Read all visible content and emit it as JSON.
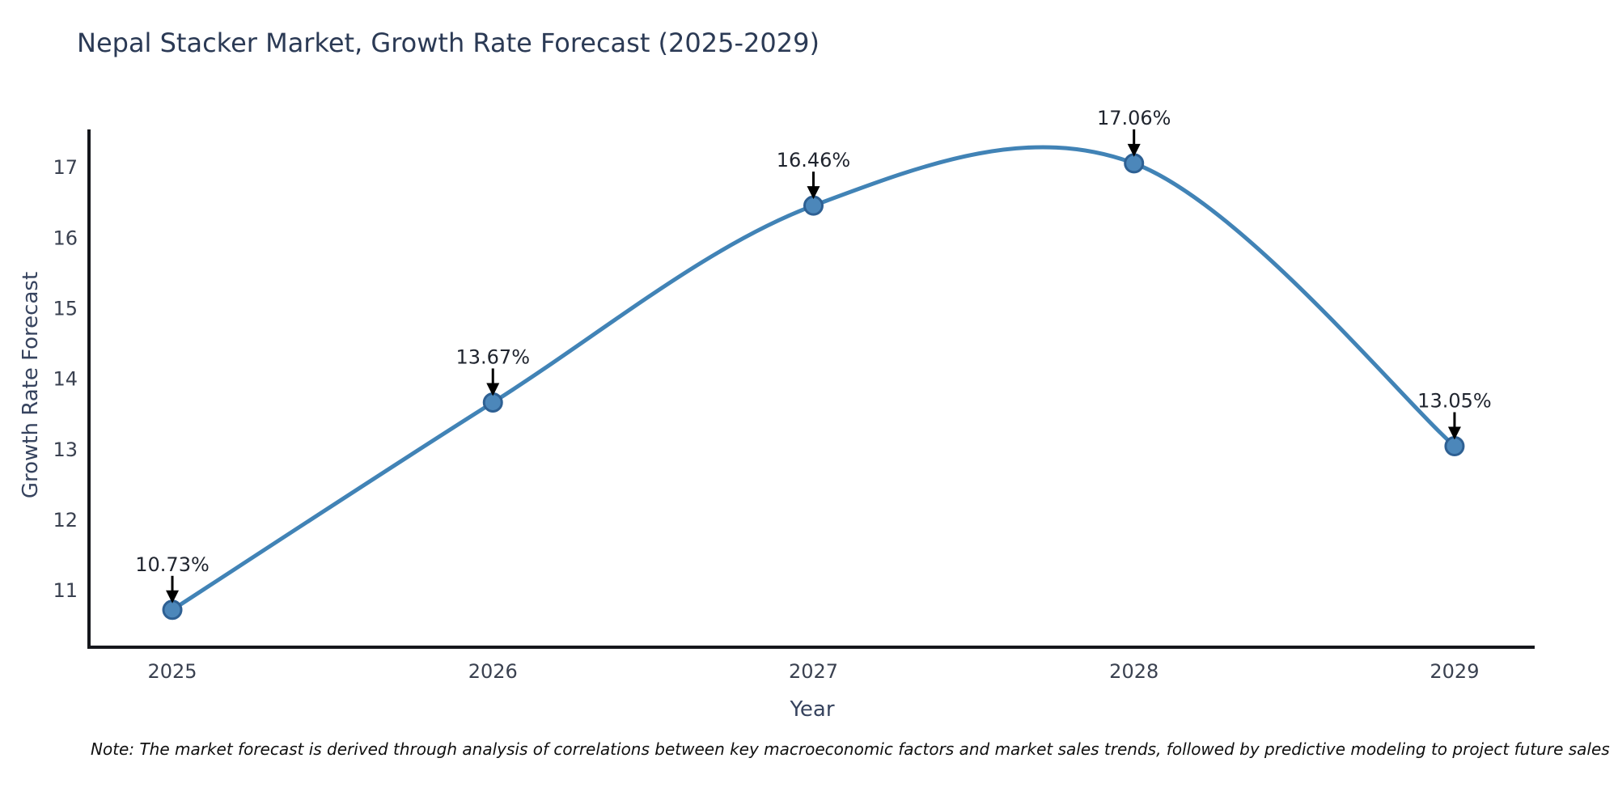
{
  "note": "Note: The market forecast is derived through analysis of correlations between key macroeconomic factors and market sales trends, followed by predictive modeling to project future sales",
  "chart_data": {
    "type": "line",
    "title": "Nepal Stacker Market, Growth Rate Forecast (2025-2029)",
    "xlabel": "Year",
    "ylabel": "Growth Rate Forecast",
    "x": [
      2025,
      2026,
      2027,
      2028,
      2029
    ],
    "values": [
      10.73,
      13.67,
      16.46,
      17.06,
      13.05
    ],
    "point_labels": [
      "10.73%",
      "13.67%",
      "16.46%",
      "17.06%",
      "13.05%"
    ],
    "x_tick_labels": [
      "2025",
      "2026",
      "2027",
      "2028",
      "2029"
    ],
    "y_ticks": [
      11,
      12,
      13,
      14,
      15,
      16,
      17
    ],
    "xlim": [
      2024.74,
      2029.25
    ],
    "ylim": [
      10.2,
      17.54
    ],
    "grid": false,
    "legend_position": "none",
    "smooth": true,
    "colors": {
      "line": "#4183b6",
      "marker_fill": "#4c87ba",
      "marker_edge": "#2e6093",
      "annotation_text": "#1f242e",
      "arrow": "#000000",
      "spine": "#15171c",
      "tick_label": "#3a4150",
      "title": "#2b3a55",
      "axis_label": "#36435e"
    }
  }
}
